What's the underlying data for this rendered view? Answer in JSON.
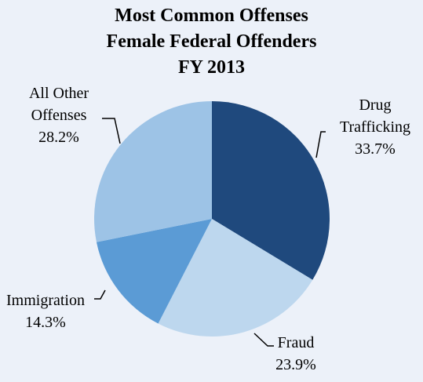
{
  "chart_data": {
    "type": "pie",
    "title_lines": [
      "Most Common Offenses",
      "Female Federal Offenders",
      "FY 2013"
    ],
    "slices": [
      {
        "label_lines": [
          "Drug",
          "Trafficking"
        ],
        "value": 33.7,
        "value_text": "33.7%",
        "color": "#1f497d"
      },
      {
        "label_lines": [
          "Fraud"
        ],
        "value": 23.9,
        "value_text": "23.9%",
        "color": "#bdd7ee"
      },
      {
        "label_lines": [
          "Immigration"
        ],
        "value": 14.3,
        "value_text": "14.3%",
        "color": "#5b9bd5"
      },
      {
        "label_lines": [
          "All Other",
          "Offenses"
        ],
        "value": 28.2,
        "value_text": "28.2%",
        "color": "#9dc3e6"
      }
    ],
    "start_angle": "12 o'clock",
    "direction": "clockwise",
    "legend": "none",
    "background": "#ecf1f9"
  }
}
